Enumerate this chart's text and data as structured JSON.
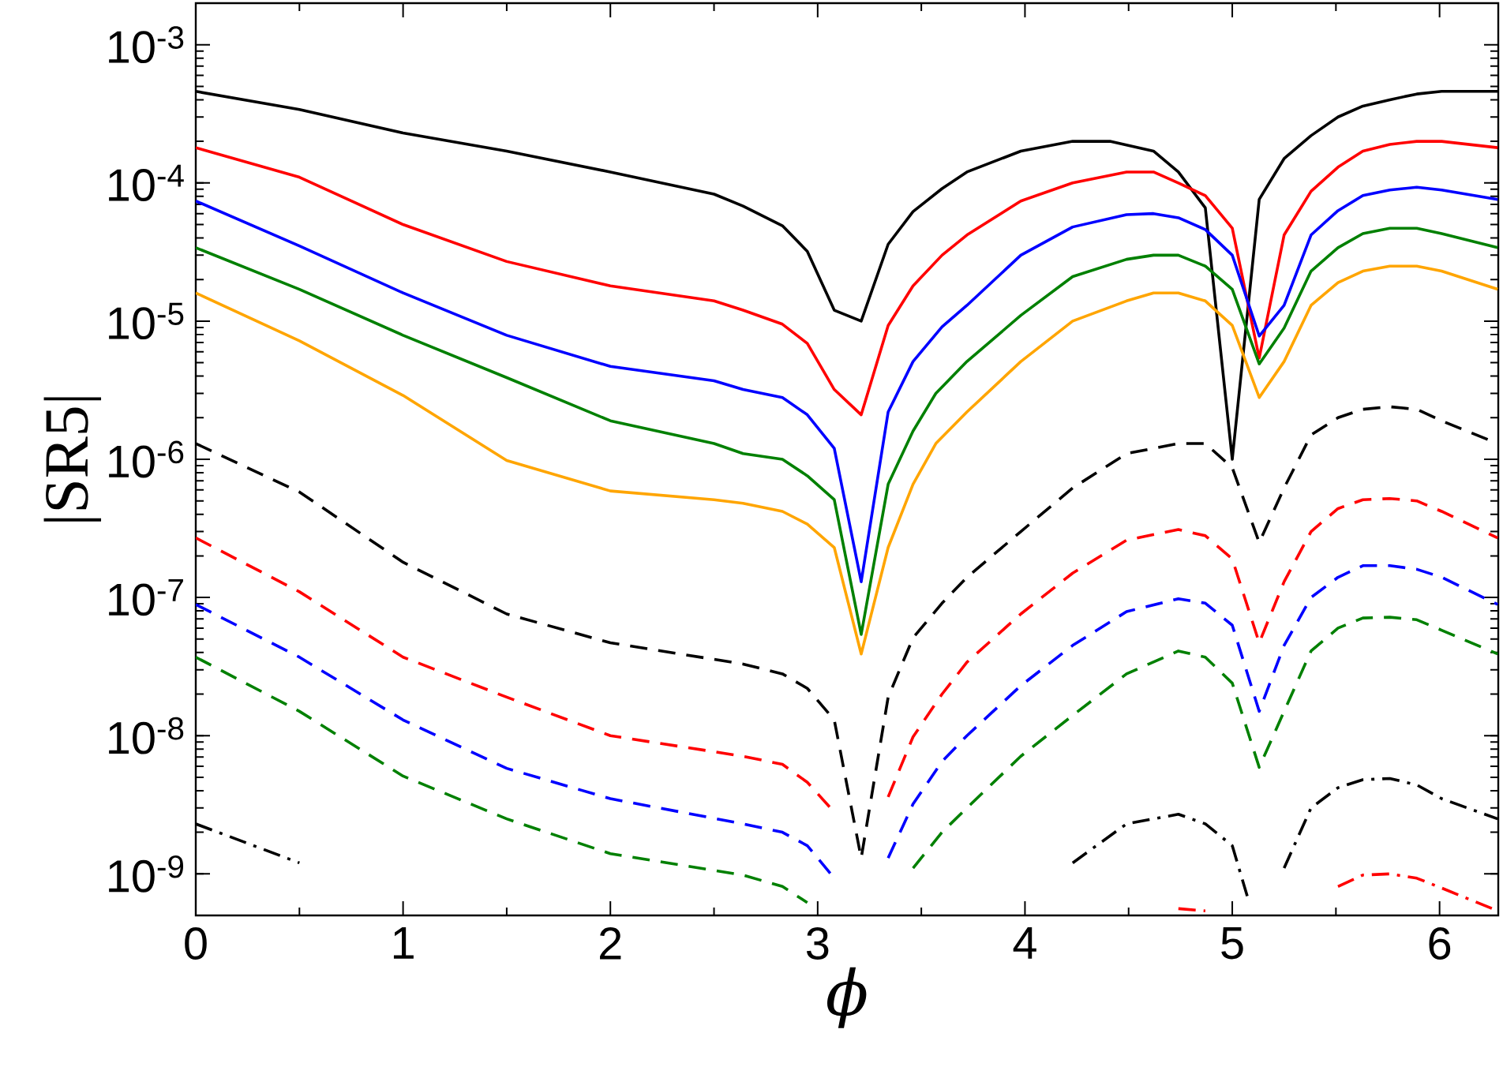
{
  "chart_data": {
    "type": "line",
    "xlabel": "ϕ",
    "ylabel": "|SR5|",
    "log": "y",
    "xlim": [
      0,
      6.2832
    ],
    "ylim": [
      5e-10,
      0.002
    ],
    "xticks": [
      0,
      1,
      2,
      3,
      4,
      5,
      6
    ],
    "yticks": [
      {
        "value": 1e-09,
        "label": "10$^{-9}$"
      },
      {
        "value": 1e-08,
        "label": "10$^{-8}$"
      },
      {
        "value": 1e-07,
        "label": "10$^{-7}$"
      },
      {
        "value": 1e-06,
        "label": "10$^{-6}$"
      },
      {
        "value": 1e-05,
        "label": "10$^{-5}$"
      },
      {
        "value": 0.0001,
        "label": "10$^{-4}$"
      },
      {
        "value": 0.001,
        "label": "10$^{-3}$"
      }
    ],
    "series": [
      {
        "color": "#000000",
        "line_style": "solid",
        "x": [
          0,
          0.5,
          1,
          1.5,
          2,
          2.5,
          2.64,
          2.83,
          2.95,
          3.08,
          3.21,
          3.34,
          3.46,
          3.6,
          3.72,
          3.98,
          4.23,
          4.41,
          4.62,
          4.74,
          4.87,
          5.0,
          5.13,
          5.25,
          5.38,
          5.51,
          5.63,
          5.76,
          5.89,
          6.01,
          6.28
        ],
        "values": [
          0.00046,
          0.00034,
          0.00023,
          0.00017,
          0.00012,
          8.3e-05,
          6.8e-05,
          4.9e-05,
          3.2e-05,
          1.2e-05,
          1e-05,
          3.6e-05,
          6.2e-05,
          9.1e-05,
          0.00012,
          0.00017,
          0.0002,
          0.0002,
          0.00017,
          0.00012,
          6.6e-05,
          1e-06,
          7.6e-05,
          0.00015,
          0.00022,
          0.0003,
          0.00036,
          0.0004,
          0.00044,
          0.00046,
          0.00046
        ]
      },
      {
        "color": "#ff0000",
        "line_style": "solid",
        "x": [
          0,
          0.5,
          1,
          1.5,
          2,
          2.5,
          2.64,
          2.83,
          2.95,
          3.08,
          3.21,
          3.34,
          3.46,
          3.6,
          3.72,
          3.98,
          4.23,
          4.49,
          4.62,
          4.74,
          4.87,
          5.0,
          5.13,
          5.25,
          5.38,
          5.51,
          5.63,
          5.76,
          5.89,
          6.01,
          6.28
        ],
        "values": [
          0.00018,
          0.00011,
          5e-05,
          2.7e-05,
          1.8e-05,
          1.4e-05,
          1.2e-05,
          9.5e-06,
          6.9e-06,
          3.2e-06,
          2.1e-06,
          9.3e-06,
          1.8e-05,
          3e-05,
          4.2e-05,
          7.4e-05,
          0.0001,
          0.00012,
          0.00012,
          0.0001,
          8.1e-05,
          4.7e-05,
          5.4e-06,
          4.2e-05,
          8.7e-05,
          0.00013,
          0.00017,
          0.00019,
          0.0002,
          0.0002,
          0.00018
        ]
      },
      {
        "color": "#0000ff",
        "line_style": "solid",
        "x": [
          0,
          0.5,
          1,
          1.5,
          2,
          2.5,
          2.64,
          2.83,
          2.95,
          3.08,
          3.21,
          3.34,
          3.46,
          3.6,
          3.72,
          3.98,
          4.23,
          4.49,
          4.62,
          4.74,
          4.87,
          5.0,
          5.13,
          5.25,
          5.38,
          5.51,
          5.63,
          5.76,
          5.89,
          6.01,
          6.28
        ],
        "values": [
          7.4e-05,
          3.5e-05,
          1.6e-05,
          7.9e-06,
          4.7e-06,
          3.7e-06,
          3.2e-06,
          2.8e-06,
          2.1e-06,
          1.2e-06,
          1.3e-07,
          2.2e-06,
          5.1e-06,
          9.1e-06,
          1.3e-05,
          3e-05,
          4.8e-05,
          5.9e-05,
          6e-05,
          5.6e-05,
          4.6e-05,
          3e-05,
          7.8e-06,
          1.3e-05,
          4.2e-05,
          6.3e-05,
          8.1e-05,
          8.9e-05,
          9.3e-05,
          8.9e-05,
          7.6e-05
        ]
      },
      {
        "color": "#008000",
        "line_style": "solid",
        "x": [
          0,
          0.5,
          1,
          1.5,
          2,
          2.5,
          2.64,
          2.83,
          2.95,
          3.08,
          3.21,
          3.34,
          3.46,
          3.57,
          3.72,
          3.98,
          4.23,
          4.49,
          4.62,
          4.74,
          4.87,
          5.0,
          5.13,
          5.25,
          5.38,
          5.51,
          5.63,
          5.76,
          5.89,
          6.01,
          6.28
        ],
        "values": [
          3.4e-05,
          1.7e-05,
          7.9e-06,
          3.9e-06,
          1.9e-06,
          1.3e-06,
          1.1e-06,
          1e-06,
          7.6e-07,
          5.1e-07,
          5.4e-08,
          6.6e-07,
          1.6e-06,
          3e-06,
          5.1e-06,
          1.1e-05,
          2.1e-05,
          2.8e-05,
          3e-05,
          3e-05,
          2.5e-05,
          1.7e-05,
          4.9e-06,
          8.9e-06,
          2.3e-05,
          3.4e-05,
          4.3e-05,
          4.7e-05,
          4.7e-05,
          4.3e-05,
          3.4e-05
        ]
      },
      {
        "color": "#ffa500",
        "line_style": "solid",
        "x": [
          0,
          0.5,
          1,
          1.5,
          2,
          2.5,
          2.64,
          2.83,
          2.95,
          3.08,
          3.21,
          3.34,
          3.46,
          3.57,
          3.72,
          3.98,
          4.23,
          4.49,
          4.62,
          4.74,
          4.87,
          5.0,
          5.13,
          5.25,
          5.38,
          5.51,
          5.63,
          5.76,
          5.89,
          6.01,
          6.28
        ],
        "values": [
          1.6e-05,
          7.2e-06,
          2.9e-06,
          9.8e-07,
          5.9e-07,
          5.1e-07,
          4.8e-07,
          4.2e-07,
          3.4e-07,
          2.3e-07,
          3.9e-08,
          2.3e-07,
          6.6e-07,
          1.3e-06,
          2.2e-06,
          5.1e-06,
          1e-05,
          1.4e-05,
          1.6e-05,
          1.6e-05,
          1.4e-05,
          9.3e-06,
          2.8e-06,
          5.1e-06,
          1.3e-05,
          1.9e-05,
          2.3e-05,
          2.5e-05,
          2.5e-05,
          2.3e-05,
          1.7e-05
        ]
      },
      {
        "color": "#000000",
        "line_style": "dashed",
        "x": [
          0,
          0.5,
          1,
          1.5,
          2,
          2.64,
          2.83,
          2.95,
          3.08,
          3.21,
          3.34,
          3.46,
          3.6,
          3.72,
          3.98,
          4.23,
          4.49,
          4.74,
          4.87,
          5.0,
          5.13,
          5.25,
          5.38,
          5.51,
          5.63,
          5.76,
          5.89,
          6.01,
          6.28
        ],
        "values": [
          1.3e-06,
          5.8e-07,
          1.8e-07,
          7.6e-08,
          4.7e-08,
          3.3e-08,
          2.8e-08,
          2.2e-08,
          1.3e-08,
          1.3e-09,
          1.9e-08,
          5.1e-08,
          9.1e-08,
          1.4e-07,
          3e-07,
          6.2e-07,
          1.1e-06,
          1.3e-06,
          1.3e-06,
          8.7e-07,
          2.5e-07,
          6.2e-07,
          1.5e-06,
          2e-06,
          2.3e-06,
          2.4e-06,
          2.3e-06,
          1.9e-06,
          1.3e-06
        ]
      },
      {
        "color": "#ff0000",
        "line_style": "dashed",
        "x": [
          0,
          0.5,
          1,
          1.5,
          2,
          2.64,
          2.83,
          2.95,
          3.08,
          3.21,
          3.34,
          3.46,
          3.6,
          3.72,
          3.98,
          4.23,
          4.49,
          4.74,
          4.87,
          5.0,
          5.13,
          5.25,
          5.38,
          5.51,
          5.63,
          5.76,
          5.89,
          6.01,
          6.28
        ],
        "values": [
          2.7e-07,
          1.1e-07,
          3.7e-08,
          1.9e-08,
          1e-08,
          7.1e-09,
          6.2e-09,
          4.6e-09,
          2.8e-09,
          null,
          3.6e-09,
          9.8e-09,
          2e-08,
          3.4e-08,
          7.6e-08,
          1.5e-07,
          2.6e-07,
          3.1e-07,
          2.8e-07,
          1.9e-07,
          4.7e-08,
          1.3e-07,
          3e-07,
          4.4e-07,
          5.1e-07,
          5.2e-07,
          5e-07,
          4.2e-07,
          2.7e-07
        ]
      },
      {
        "color": "#0000ff",
        "line_style": "dashed",
        "x": [
          0,
          0.5,
          1,
          1.5,
          2,
          2.64,
          2.83,
          2.95,
          3.08,
          3.2,
          3.34,
          3.46,
          3.6,
          3.72,
          3.98,
          4.23,
          4.49,
          4.74,
          4.87,
          5.0,
          5.13,
          5.25,
          5.38,
          5.51,
          5.63,
          5.76,
          5.89,
          6.01,
          6.28
        ],
        "values": [
          8.9e-08,
          3.7e-08,
          1.3e-08,
          5.8e-09,
          3.5e-09,
          2.3e-09,
          2e-09,
          1.6e-09,
          9.3e-10,
          null,
          1.3e-09,
          3.2e-09,
          6.5e-09,
          1e-08,
          2.3e-08,
          4.5e-08,
          7.9e-08,
          9.8e-08,
          9.1e-08,
          6.3e-08,
          1.5e-08,
          4.5e-08,
          1e-07,
          1.4e-07,
          1.7e-07,
          1.7e-07,
          1.6e-07,
          1.4e-07,
          8.9e-08
        ]
      },
      {
        "color": "#008000",
        "line_style": "dashed",
        "x": [
          0,
          0.5,
          1,
          1.5,
          2,
          2.64,
          2.83,
          2.95,
          3.16,
          3.46,
          3.6,
          3.72,
          3.98,
          4.23,
          4.49,
          4.74,
          4.87,
          5.0,
          5.13,
          5.25,
          5.38,
          5.51,
          5.63,
          5.76,
          5.89,
          6.01,
          6.28
        ],
        "values": [
          3.7e-08,
          1.5e-08,
          5.1e-09,
          2.5e-09,
          1.4e-09,
          9.8e-10,
          8.1e-10,
          6.2e-10,
          null,
          1.1e-09,
          2e-09,
          3e-09,
          7.1e-09,
          1.4e-08,
          2.8e-08,
          4.1e-08,
          3.7e-08,
          2.4e-08,
          5.9e-09,
          1.5e-08,
          4.1e-08,
          6e-08,
          7.1e-08,
          7.2e-08,
          6.9e-08,
          5.8e-08,
          3.9e-08
        ]
      },
      {
        "color": "#000000",
        "line_style": "dashdot",
        "x": [
          0,
          0.5,
          2.0,
          4.23,
          4.49,
          4.74,
          4.87,
          5.0,
          5.08,
          5.13,
          5.25,
          5.38,
          5.51,
          5.63,
          5.76,
          5.89,
          6.01,
          6.28
        ],
        "values": [
          2.3e-09,
          1.2e-09,
          null,
          1.2e-09,
          2.3e-09,
          2.7e-09,
          2.3e-09,
          1.6e-09,
          6.3e-10,
          null,
          1.1e-09,
          3e-09,
          4.2e-09,
          4.8e-09,
          4.9e-09,
          4.4e-09,
          3.5e-09,
          2.5e-09
        ]
      },
      {
        "color": "#ff0000",
        "line_style": "dashdot",
        "x": [
          4.74,
          4.87,
          5.1,
          5.51,
          5.63,
          5.76,
          5.89,
          6.01,
          6.28
        ],
        "values": [
          5.6e-10,
          5.4e-10,
          null,
          8.1e-10,
          9.8e-10,
          1e-09,
          9.3e-10,
          7.9e-10,
          5.4e-10
        ]
      }
    ]
  }
}
